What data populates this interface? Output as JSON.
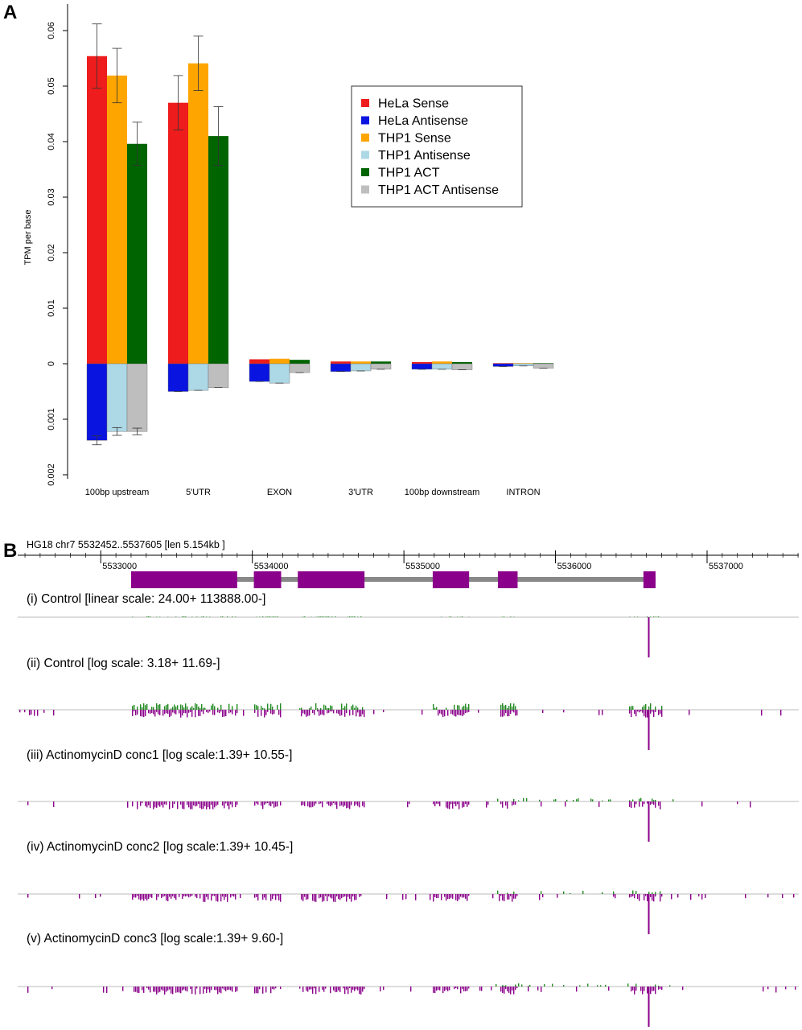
{
  "panel_a": {
    "label": "A"
  },
  "panel_b": {
    "label": "B"
  },
  "chart_data": [
    {
      "type": "bar",
      "ylabel": "TPM per base",
      "ticks_upper": [
        "0",
        "0.01",
        "0.02",
        "0.03",
        "0.04",
        "0.05",
        "0.06"
      ],
      "ticks_lower": [
        "0.001",
        "0.002"
      ],
      "categories": [
        "100bp upstream",
        "5'UTR",
        "EXON",
        "3'UTR",
        "100bp downstream",
        "INTRON"
      ],
      "legend_position": "top-right",
      "series": [
        {
          "name": "HeLa Sense",
          "color": "#ee1c1c",
          "stack": "sense",
          "group": 0,
          "values": [
            0.0554,
            0.047,
            0.0008,
            0.0004,
            0.0003,
            0.0001
          ],
          "errors": [
            0.0058,
            0.0049,
            0.0,
            0.0,
            0.0,
            0.0
          ]
        },
        {
          "name": "HeLa Antisense",
          "color": "#0a14e0",
          "stack": "antisense",
          "group": 0,
          "values": [
            0.00138,
            0.0005,
            0.00032,
            0.00014,
            0.0001,
            5e-05
          ],
          "errors": [
            8e-05,
            0.0,
            0.0,
            0.0,
            0.0,
            0.0
          ]
        },
        {
          "name": "THP1 Sense",
          "color": "#ffa500",
          "stack": "sense",
          "group": 1,
          "values": [
            0.0519,
            0.0541,
            0.0009,
            0.0004,
            0.0004,
            0.0001
          ],
          "errors": [
            0.0049,
            0.0049,
            0.0,
            0.0,
            0.0,
            0.0
          ]
        },
        {
          "name": "THP1 Antisense",
          "color": "#add8e6",
          "stack": "antisense",
          "group": 1,
          "values": [
            0.00122,
            0.00048,
            0.00035,
            0.00013,
            0.0001,
            4e-05
          ],
          "errors": [
            7e-05,
            0.0,
            0.0,
            0.0,
            0.0,
            0.0
          ]
        },
        {
          "name": "THP1 ACT",
          "color": "#006400",
          "stack": "sense",
          "group": 2,
          "values": [
            0.0396,
            0.041,
            0.0007,
            0.0004,
            0.0003,
            0.0001
          ],
          "errors": [
            0.0039,
            0.0053,
            0.0,
            0.0,
            0.0,
            0.0
          ]
        },
        {
          "name": "THP1 ACT Antisense",
          "color": "#bebebe",
          "stack": "antisense",
          "group": 2,
          "values": [
            0.00122,
            0.00043,
            0.00016,
            0.0001,
            0.00011,
            8e-05
          ],
          "errors": [
            6e-05,
            0.0,
            0.0,
            0.0,
            0.0,
            0.0
          ]
        }
      ]
    },
    {
      "type": "genome-browser",
      "header": "HG18 chr7 5532452..5537605 [len 5.154kb ]",
      "coord_start": 5532452,
      "coord_end": 5537605,
      "coord_labels": [
        "5533000",
        "5534000",
        "5535000",
        "5536000",
        "5537000"
      ],
      "coord_values": [
        5533000,
        5534000,
        5535000,
        5536000,
        5537000
      ],
      "gene_line": [
        5533200,
        5536660
      ],
      "exons": [
        [
          5533200,
          5533900
        ],
        [
          5534010,
          5534190
        ],
        [
          5534300,
          5534740
        ],
        [
          5535190,
          5535430
        ],
        [
          5535620,
          5535750
        ],
        [
          5536580,
          5536660
        ]
      ],
      "sense_color": "#228b22",
      "antisense_color": "#8b008b",
      "gene_color": "#8b008b",
      "intron_color": "#888888",
      "tracks": [
        {
          "label": "(i) Control [linear scale: 24.00+ 113888.00-]",
          "peak": 5536610,
          "peak_depth": 1.0,
          "sense_level": 0.05,
          "anti_level": 0.05
        },
        {
          "label": "(ii) Control [log scale: 3.18+ 11.69-]",
          "peak": 5536610,
          "peak_depth": 1.0,
          "sense_level": 0.45,
          "anti_level": 0.45
        },
        {
          "label": "(iii) ActinomycinD conc1 [log scale:1.39+ 10.55-]",
          "peak": 5536610,
          "peak_depth": 1.0,
          "sense_level": 0.25,
          "anti_level": 0.45
        },
        {
          "label": "(iv) ActinomycinD conc2 [log scale:1.39+ 10.45-]",
          "peak": 5536610,
          "peak_depth": 1.0,
          "sense_level": 0.25,
          "anti_level": 0.45
        },
        {
          "label": "(v) ActinomycinD conc3 [log scale:1.39+ 9.60-]",
          "peak": 5536610,
          "peak_depth": 1.0,
          "sense_level": 0.22,
          "anti_level": 0.45
        }
      ]
    }
  ]
}
